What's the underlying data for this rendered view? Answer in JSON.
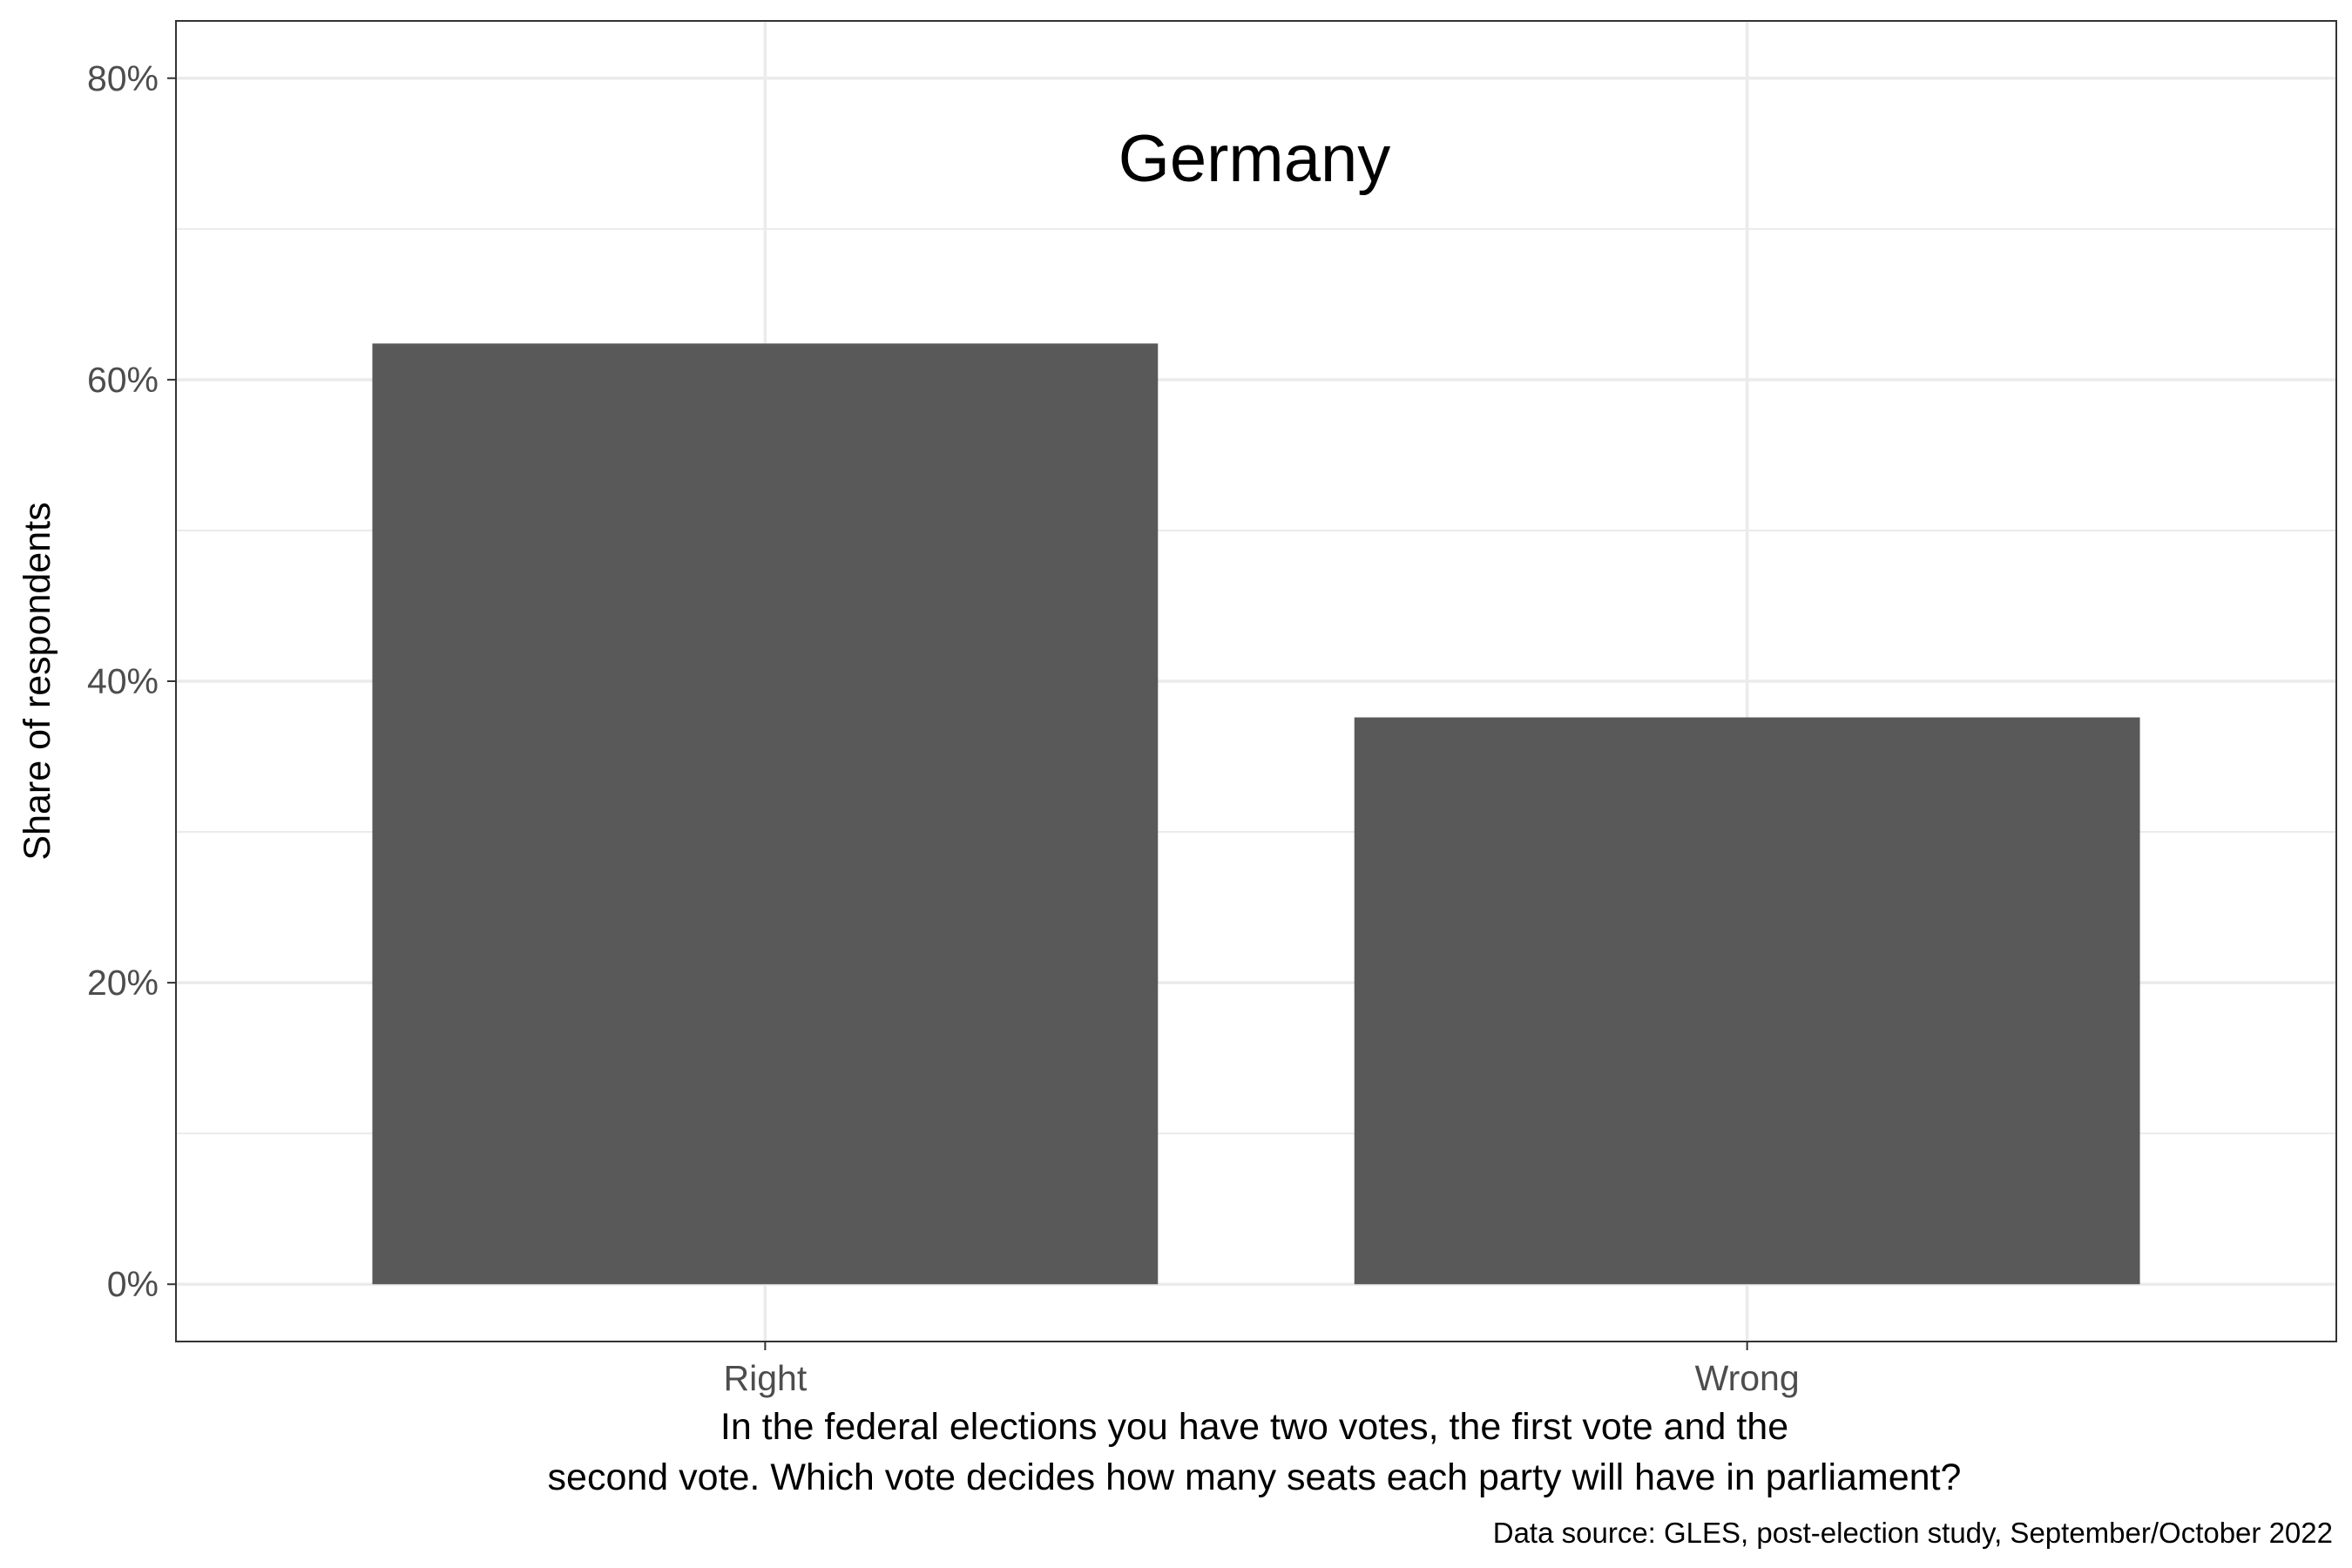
{
  "chart_data": {
    "type": "bar",
    "title": "Germany",
    "categories": [
      "Right",
      "Wrong"
    ],
    "values": [
      62.4,
      37.6
    ],
    "value_unit": "%",
    "ylabel": "Share of respondents",
    "xlabel_lines": [
      "In the federal elections you have two votes, the first vote and the",
      "second vote. Which vote decides how many seats each party will have in parliament?"
    ],
    "caption": "Data source: GLES, post-election study, September/October 2022",
    "ylim": [
      -3.8,
      83.8
    ],
    "yticks": [
      0,
      20,
      40,
      60,
      80
    ],
    "ytick_labels": [
      "0%",
      "20%",
      "40%",
      "60%",
      "80%"
    ],
    "grid": true,
    "bar_color": "#595959",
    "grid_color": "#ebebeb",
    "panel_border_color": "#333333",
    "tick_label_color": "#4d4d4d"
  }
}
